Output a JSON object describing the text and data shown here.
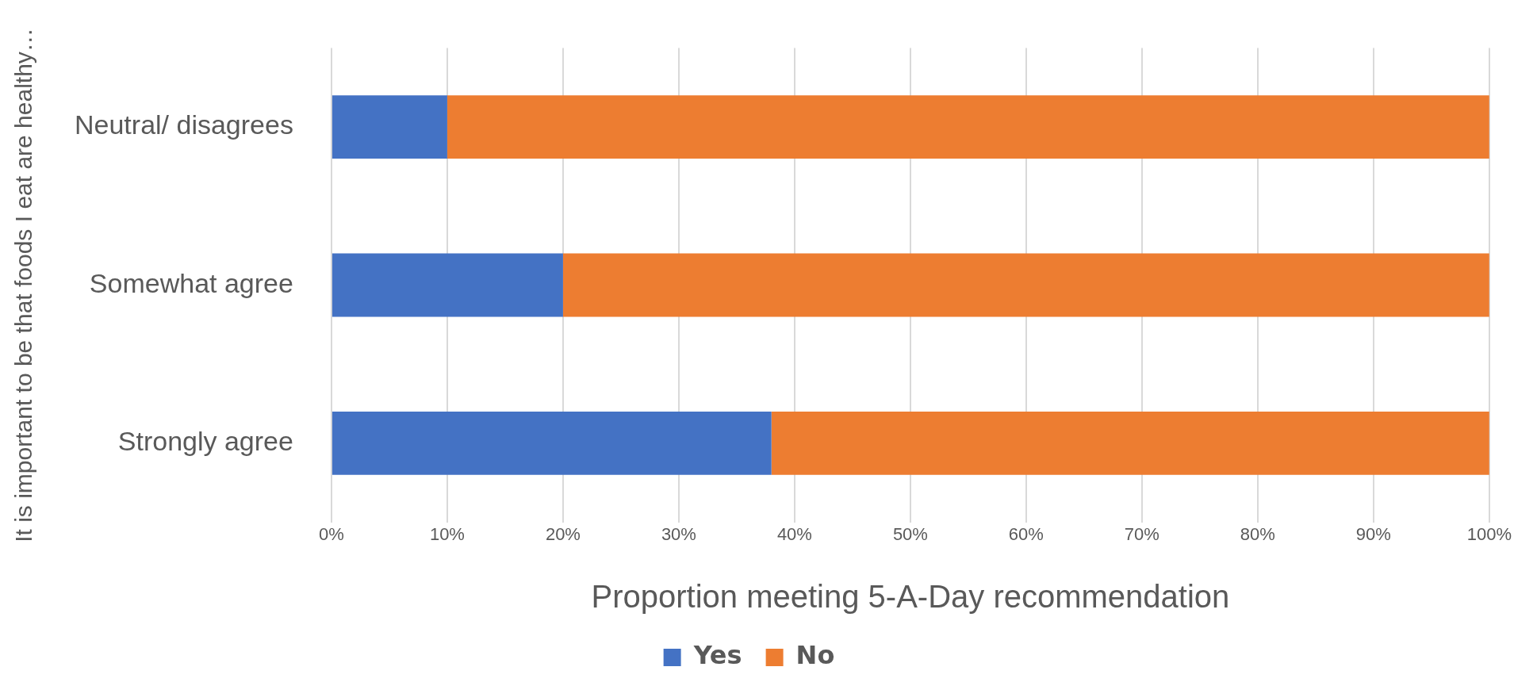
{
  "chart_data": {
    "type": "bar",
    "orientation": "horizontal",
    "stacked": true,
    "categories": [
      "Neutral/ disagrees",
      "Somewhat agree",
      "Strongly agree"
    ],
    "series": [
      {
        "name": "Yes",
        "color": "#4472c4",
        "values": [
          10,
          20,
          38
        ]
      },
      {
        "name": "No",
        "color": "#ed7d31",
        "values": [
          90,
          80,
          62
        ]
      }
    ],
    "xlim": [
      0,
      100
    ],
    "xticks": [
      {
        "value": 0,
        "label": "0%"
      },
      {
        "value": 10,
        "label": "10%"
      },
      {
        "value": 20,
        "label": "20%"
      },
      {
        "value": 30,
        "label": "30%"
      },
      {
        "value": 40,
        "label": "40%"
      },
      {
        "value": 50,
        "label": "50%"
      },
      {
        "value": 60,
        "label": "60%"
      },
      {
        "value": 70,
        "label": "70%"
      },
      {
        "value": 80,
        "label": "80%"
      },
      {
        "value": 90,
        "label": "90%"
      },
      {
        "value": 100,
        "label": "100%"
      }
    ],
    "xlabel": "Proportion meeting 5-A-Day recommendation",
    "ylabel": "It is important to be that foods I eat are healthy…",
    "grid": "x",
    "legend": "bottom"
  }
}
